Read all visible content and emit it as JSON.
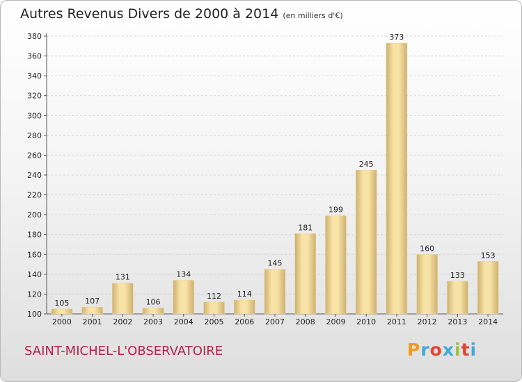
{
  "title": "Autres Revenus Divers de 2000 à 2014",
  "unit": "(en milliers d'€)",
  "commune": "SAINT-MICHEL-L'OBSERVATOIRE",
  "logo": {
    "letters": [
      "P",
      "r",
      "o",
      "x",
      "i",
      "t",
      "i"
    ],
    "colors": [
      "#f39c1a",
      "#3fa9dd",
      "#e8412e",
      "#3fa9dd",
      "#9ac43a",
      "#e8412e",
      "#3fa9dd"
    ]
  },
  "colors": {
    "bar_light": "#f8e3a6",
    "bar_dark": "#cdb070",
    "grid": "#d4d4d4",
    "axis": "#555555",
    "label": "#222222"
  },
  "chart_data": {
    "type": "bar",
    "categories": [
      "2000",
      "2001",
      "2002",
      "2003",
      "2004",
      "2005",
      "2006",
      "2007",
      "2008",
      "2009",
      "2010",
      "2011",
      "2012",
      "2013",
      "2014"
    ],
    "values": [
      105,
      107,
      131,
      106,
      134,
      112,
      114,
      145,
      181,
      199,
      245,
      373,
      160,
      133,
      153
    ],
    "title": "Autres Revenus Divers de 2000 à 2014",
    "subtitle": "(en milliers d'€)",
    "xlabel": "",
    "ylabel": "",
    "ylim": [
      100,
      380
    ],
    "yticks": [
      100,
      120,
      140,
      160,
      180,
      200,
      220,
      240,
      260,
      280,
      300,
      320,
      340,
      360,
      380
    ],
    "grid": "horizontal dashed",
    "legend": "none"
  }
}
